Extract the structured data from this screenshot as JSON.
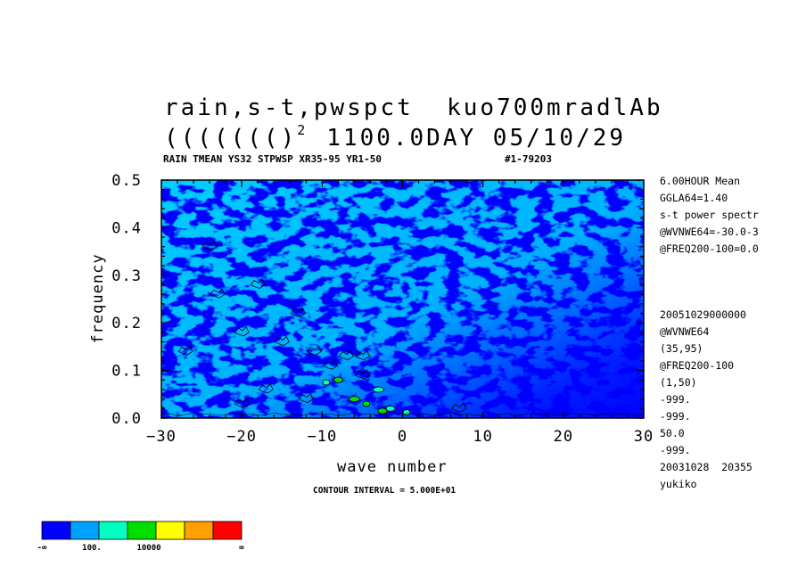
{
  "header": {
    "title_line1": "rain,s-t,pwspct  kuo700mradlAb",
    "title_line2_prefix": "(((((((",
    "title_line2_close": ")",
    "title_line2_sup": "2",
    "title_line2_suffix": "1100.0DAY 05/10/29",
    "info_line": "RAIN TMEAN YS32 STPWSP XR35-95 YR1-50",
    "info_id": "#1-79203"
  },
  "side_info": [
    "6.00HOUR Mean",
    "GGLA64=1.40",
    "s-t power spectr",
    "@WVNWE64=-30.0-3",
    "@FREQ200-100=0.0",
    "20051029000000",
    "@WVNWE64",
    "(35,95)",
    "@FREQ200-100",
    "(1,50)",
    "-999.",
    "-999.",
    "50.0",
    "-999.",
    "20031028  20355",
    "yukiko"
  ],
  "contour_note": "CONTOUR INTERVAL = 5.000E+01",
  "colorbar": {
    "colors": [
      "#0000ff",
      "#00a0ff",
      "#00ffc0",
      "#00e000",
      "#ffff00",
      "#ffa000",
      "#ff0000"
    ],
    "labels": [
      "-∞",
      "100.",
      "10000",
      "∞"
    ]
  },
  "chart_data": {
    "type": "heatmap",
    "title": "rain,s-t,pwspct  kuo700mradlAb",
    "xlabel": "wave number",
    "ylabel": "frequency",
    "xlim": [
      -30,
      30
    ],
    "ylim": [
      0.0,
      0.5
    ],
    "x_ticks": [
      -30,
      -20,
      -10,
      0,
      10,
      20,
      30
    ],
    "x_tick_labels": [
      "−30",
      "−20",
      "−10",
      "0",
      "10",
      "20",
      "30"
    ],
    "y_ticks": [
      0.0,
      0.1,
      0.2,
      0.3,
      0.4,
      0.5
    ],
    "y_tick_labels": [
      "0.0",
      "0.1",
      "0.2",
      "0.3",
      "0.4",
      "0.5"
    ],
    "contour_interval": 50.0,
    "background_color": "#0000ff",
    "light_region_color": "#00a0ff",
    "peak_colors": [
      "#00ffc0",
      "#00e000"
    ]
  }
}
